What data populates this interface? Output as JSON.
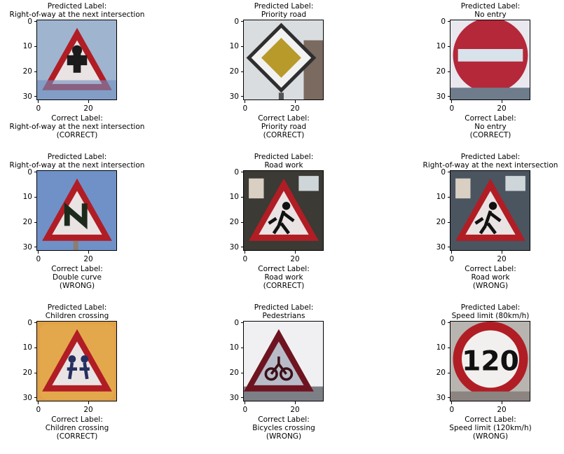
{
  "panels": [
    {
      "predicted_heading": "Predicted Label:",
      "predicted": "Right-of-way at the next intersection",
      "correct_heading": "Correct Label:",
      "correct": "Right-of-way at the next intersection",
      "verdict": "(CORRECT)",
      "sign": "triangle-figure",
      "bg": "#9fb4cf"
    },
    {
      "predicted_heading": "Predicted Label:",
      "predicted": "Priority road",
      "correct_heading": "Correct Label:",
      "correct": "Priority road",
      "verdict": "(CORRECT)",
      "sign": "diamond",
      "bg": "#d9dde0"
    },
    {
      "predicted_heading": "Predicted Label:",
      "predicted": "No entry",
      "correct_heading": "Correct Label:",
      "correct": "No entry",
      "verdict": "(CORRECT)",
      "sign": "no-entry",
      "bg": "#e8e8ee"
    },
    {
      "predicted_heading": "Predicted Label:",
      "predicted": "Right-of-way at the next intersection",
      "correct_heading": "Correct Label:",
      "correct": "Double curve",
      "verdict": "(WRONG)",
      "sign": "triangle-curve",
      "bg": "#6f91c8"
    },
    {
      "predicted_heading": "Predicted Label:",
      "predicted": "Road work",
      "correct_heading": "Correct Label:",
      "correct": "Road work",
      "verdict": "(CORRECT)",
      "sign": "triangle-worker",
      "bg": "#3b3a35"
    },
    {
      "predicted_heading": "Predicted Label:",
      "predicted": "Right-of-way at the next intersection",
      "correct_heading": "Correct Label:",
      "correct": "Road work",
      "verdict": "(WRONG)",
      "sign": "triangle-worker",
      "bg": "#4a5560"
    },
    {
      "predicted_heading": "Predicted Label:",
      "predicted": "Children crossing",
      "correct_heading": "Correct Label:",
      "correct": "Children crossing",
      "verdict": "(CORRECT)",
      "sign": "triangle-children",
      "bg": "#e0a14a"
    },
    {
      "predicted_heading": "Predicted Label:",
      "predicted": "Pedestrians",
      "correct_heading": "Correct Label:",
      "correct": "Bicycles crossing",
      "verdict": "(WRONG)",
      "sign": "triangle-bike",
      "bg": "#d4d4d8"
    },
    {
      "predicted_heading": "Predicted Label:",
      "predicted": "Speed limit (80km/h)",
      "correct_heading": "Correct Label:",
      "correct": "Speed limit (120km/h)",
      "verdict": "(WRONG)",
      "sign": "speed-120",
      "bg": "#b8b4b0",
      "speed_text": "120"
    }
  ],
  "y_ticks": [
    "0",
    "10",
    "20",
    "30"
  ],
  "x_ticks": [
    "0",
    "20"
  ],
  "axis_range": [
    0,
    31
  ]
}
